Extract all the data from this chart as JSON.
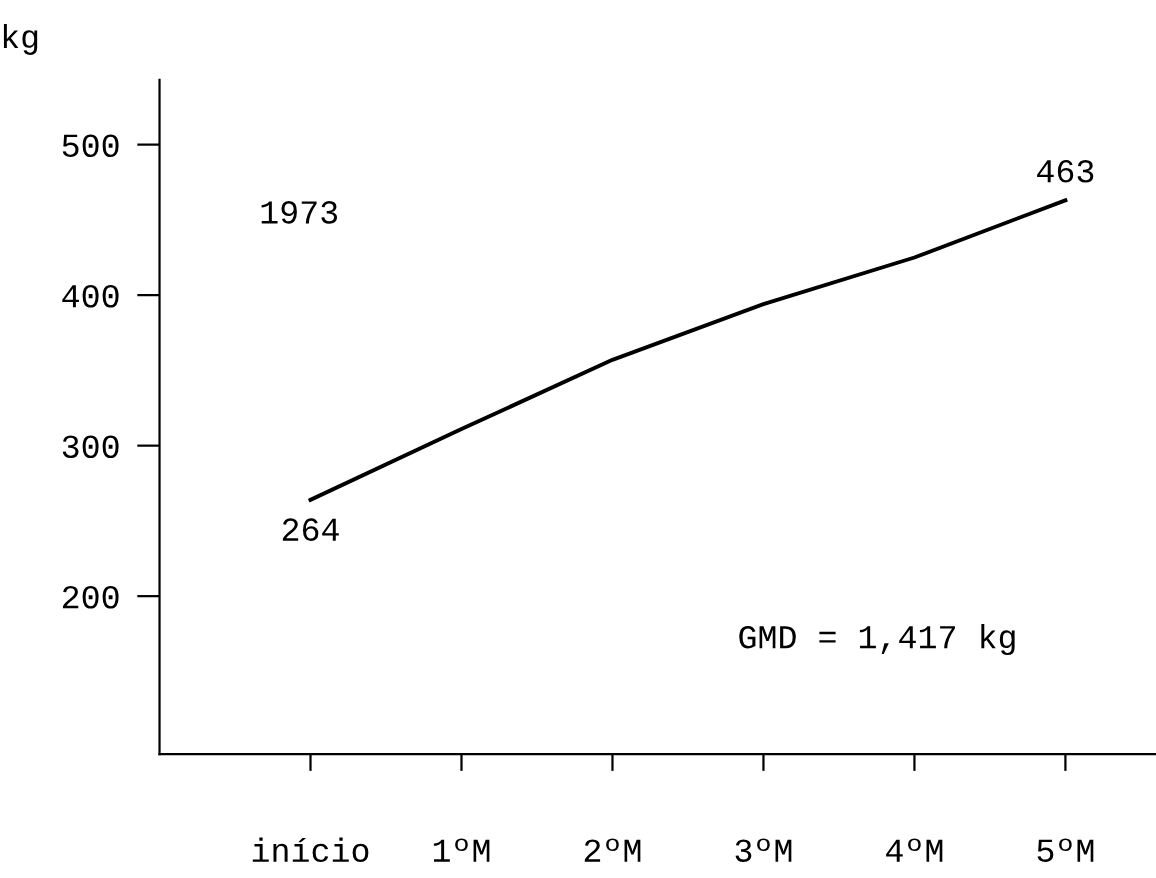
{
  "chart_data": {
    "type": "line",
    "ylabel": "kg",
    "categories": [
      "início",
      "1ºM",
      "2ºM",
      "3ºM",
      "4ºM",
      "5ºM"
    ],
    "series": [
      {
        "color": "#000000",
        "values": [
          264,
          311,
          357,
          394,
          425,
          463
        ],
        "value_labels": [
          "264",
          null,
          null,
          null,
          null,
          "463"
        ]
      }
    ],
    "ylim": [
      95,
      543
    ],
    "yticks": [
      200,
      300,
      400,
      500
    ],
    "grid": false,
    "legend": false,
    "marker": "none",
    "line_style": "solid",
    "annotations": [
      "1973",
      "GMD = 1,417 kg"
    ]
  }
}
